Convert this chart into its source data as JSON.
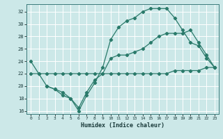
{
  "xlabel": "Humidex (Indice chaleur)",
  "xlim": [
    -0.5,
    23.5
  ],
  "ylim": [
    15.5,
    33.2
  ],
  "yticks": [
    16,
    18,
    20,
    22,
    24,
    26,
    28,
    30,
    32
  ],
  "xticks": [
    0,
    1,
    2,
    3,
    4,
    5,
    6,
    7,
    8,
    9,
    10,
    11,
    12,
    13,
    14,
    15,
    16,
    17,
    18,
    19,
    20,
    21,
    22,
    23
  ],
  "bg_color": "#cce8e8",
  "grid_color": "#ffffff",
  "line_color": "#2a7a6a",
  "line1_x": [
    0,
    1,
    2,
    3,
    4,
    5,
    6,
    7,
    8,
    9,
    10,
    11,
    12,
    13,
    14,
    15,
    16,
    17,
    18,
    19,
    20,
    21,
    22,
    23
  ],
  "line1_y": [
    24,
    22,
    20,
    19.5,
    18.5,
    18,
    16,
    18.5,
    20.5,
    23,
    27.5,
    29.5,
    30.5,
    31,
    32,
    32.5,
    32.5,
    32.5,
    31,
    29,
    27,
    26.5,
    24.5,
    23
  ],
  "line2_x": [
    2,
    3,
    4,
    5,
    6,
    7,
    8,
    9,
    10,
    11,
    12,
    13,
    14,
    15,
    16,
    17,
    18,
    19,
    20,
    21,
    22,
    23
  ],
  "line2_y": [
    20,
    19.5,
    19,
    18,
    16.5,
    19,
    21,
    22,
    24.5,
    25,
    25,
    25.5,
    26,
    27,
    28,
    28.5,
    28.5,
    28.5,
    29,
    27,
    25,
    23
  ],
  "line3_x": [
    0,
    1,
    2,
    3,
    4,
    5,
    6,
    7,
    8,
    9,
    10,
    11,
    12,
    13,
    14,
    15,
    16,
    17,
    18,
    19,
    20,
    21,
    22,
    23
  ],
  "line3_y": [
    22,
    22,
    22,
    22,
    22,
    22,
    22,
    22,
    22,
    22,
    22,
    22,
    22,
    22,
    22,
    22,
    22,
    22,
    22.5,
    22.5,
    22.5,
    22.5,
    23,
    23
  ]
}
